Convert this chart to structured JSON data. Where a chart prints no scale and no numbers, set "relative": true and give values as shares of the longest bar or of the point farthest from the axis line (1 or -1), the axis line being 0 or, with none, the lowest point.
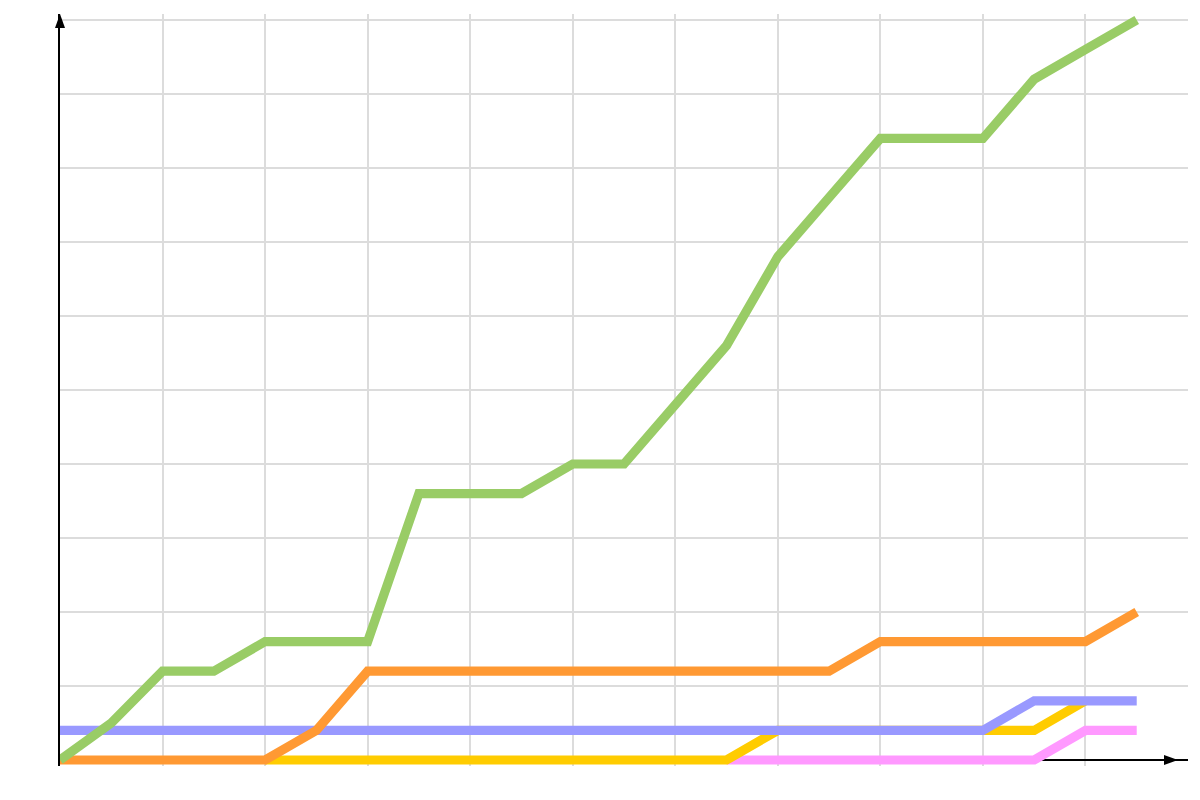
{
  "chart_data": {
    "type": "line",
    "relative": true,
    "categories": [
      null,
      null,
      null,
      null,
      null,
      null,
      null,
      null,
      null,
      null,
      null,
      null,
      null,
      null,
      null,
      null,
      null,
      null,
      null,
      null,
      null,
      null
    ],
    "series": [
      {
        "color": "#ff99ff",
        "values": [
          null,
          null,
          null,
          null,
          null,
          null,
          null,
          null,
          null,
          null,
          null,
          null,
          null,
          0,
          0,
          0,
          0,
          0,
          0,
          0,
          0.04,
          0.04
        ]
      },
      {
        "color": "#ffcc00",
        "values": [
          null,
          null,
          null,
          null,
          0,
          0,
          0,
          0,
          0,
          0,
          0,
          0,
          0,
          0,
          0.04,
          null,
          null,
          null,
          0.04,
          0.04,
          0.08,
          null
        ]
      },
      {
        "color": "#9999ff",
        "values": [
          0.04,
          0.04,
          0.04,
          0.04,
          0.04,
          0.04,
          0.04,
          0.04,
          0.04,
          0.04,
          0.04,
          0.04,
          0.04,
          0.04,
          0.04,
          0.04,
          0.04,
          0.04,
          0.04,
          0.08,
          0.08,
          0.08
        ]
      },
      {
        "color": "#ff9933",
        "values": [
          0,
          0,
          0,
          0,
          0,
          0.04,
          0.12,
          0.12,
          0.12,
          0.12,
          0.12,
          0.12,
          0.12,
          0.12,
          0.12,
          0.12,
          0.16,
          0.16,
          0.16,
          0.16,
          0.16,
          0.2
        ]
      },
      {
        "color": "#99cc66",
        "values": [
          0,
          0.05,
          0.12,
          0.12,
          0.16,
          0.16,
          0.16,
          0.36,
          0.36,
          0.36,
          0.4,
          0.4,
          0.48,
          0.56,
          0.68,
          0.76,
          0.84,
          0.84,
          0.84,
          0.92,
          0.96,
          1
        ]
      }
    ],
    "grid": true,
    "line_style": "solid"
  }
}
